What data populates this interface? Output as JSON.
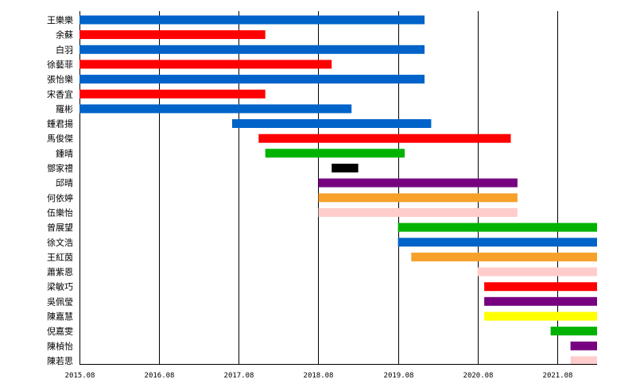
{
  "chart_data": {
    "type": "gantt",
    "title": "",
    "xlabel": "",
    "ylabel": "",
    "x_ticks": [
      "2015.08",
      "2016.08",
      "2017.08",
      "2018.08",
      "2019.08",
      "2020.08",
      "2021.08"
    ],
    "x_range": [
      "2015.08",
      "2022.02"
    ],
    "grid": "vertical lines at x ticks",
    "legend": "none",
    "members": [
      {
        "name": "王樂樂",
        "start": "2015.08",
        "end": "2019.12",
        "color": "#0063c9"
      },
      {
        "name": "余蘇",
        "start": "2015.08",
        "end": "2017.12",
        "color": "#ff0000"
      },
      {
        "name": "白羽",
        "start": "2015.08",
        "end": "2019.12",
        "color": "#0063c9"
      },
      {
        "name": "徐藝菲",
        "start": "2015.08",
        "end": "2018.10",
        "color": "#ff0000"
      },
      {
        "name": "張怡樂",
        "start": "2015.08",
        "end": "2019.12",
        "color": "#0063c9"
      },
      {
        "name": "宋香宜",
        "start": "2015.08",
        "end": "2017.12",
        "color": "#ff0000"
      },
      {
        "name": "羅彬",
        "start": "2015.08",
        "end": "2019.01",
        "color": "#0063c9"
      },
      {
        "name": "鍾君揚",
        "start": "2017.07",
        "end": "2020.01",
        "color": "#0063c9"
      },
      {
        "name": "馬俊傑",
        "start": "2017.11",
        "end": "2021.01",
        "color": "#ff0000"
      },
      {
        "name": "鍾晴",
        "start": "2017.12",
        "end": "2019.09",
        "color": "#00b300"
      },
      {
        "name": "鄧家禮",
        "start": "2018.10",
        "end": "2019.02",
        "color": "#000000"
      },
      {
        "name": "邱晴",
        "start": "2018.08",
        "end": "2021.02",
        "color": "#76007f"
      },
      {
        "name": "何依婷",
        "start": "2018.08",
        "end": "2021.02",
        "color": "#f7a12b"
      },
      {
        "name": "伍樂怡",
        "start": "2018.08",
        "end": "2021.02",
        "color": "#ffcccc"
      },
      {
        "name": "曾展望",
        "start": "2019.08",
        "end": "2022.02",
        "color": "#00b300"
      },
      {
        "name": "徐文浩",
        "start": "2019.08",
        "end": "2022.02",
        "color": "#0063c9"
      },
      {
        "name": "王紅茵",
        "start": "2019.10",
        "end": "2022.02",
        "color": "#f7a12b"
      },
      {
        "name": "蕭紫恩",
        "start": "2020.08",
        "end": "2022.02",
        "color": "#ffcccc"
      },
      {
        "name": "梁敏巧",
        "start": "2020.09",
        "end": "2022.02",
        "color": "#ff0000"
      },
      {
        "name": "吳佩瑩",
        "start": "2020.09",
        "end": "2022.02",
        "color": "#76007f"
      },
      {
        "name": "陳嘉慧",
        "start": "2020.09",
        "end": "2022.02",
        "color": "#ffff00"
      },
      {
        "name": "倪嘉雯",
        "start": "2021.07",
        "end": "2022.02",
        "color": "#00b300"
      },
      {
        "name": "陳楨怡",
        "start": "2021.10",
        "end": "2022.02",
        "color": "#76007f"
      },
      {
        "name": "陳若思",
        "start": "2021.10",
        "end": "2022.02",
        "color": "#ffcccc"
      }
    ]
  }
}
